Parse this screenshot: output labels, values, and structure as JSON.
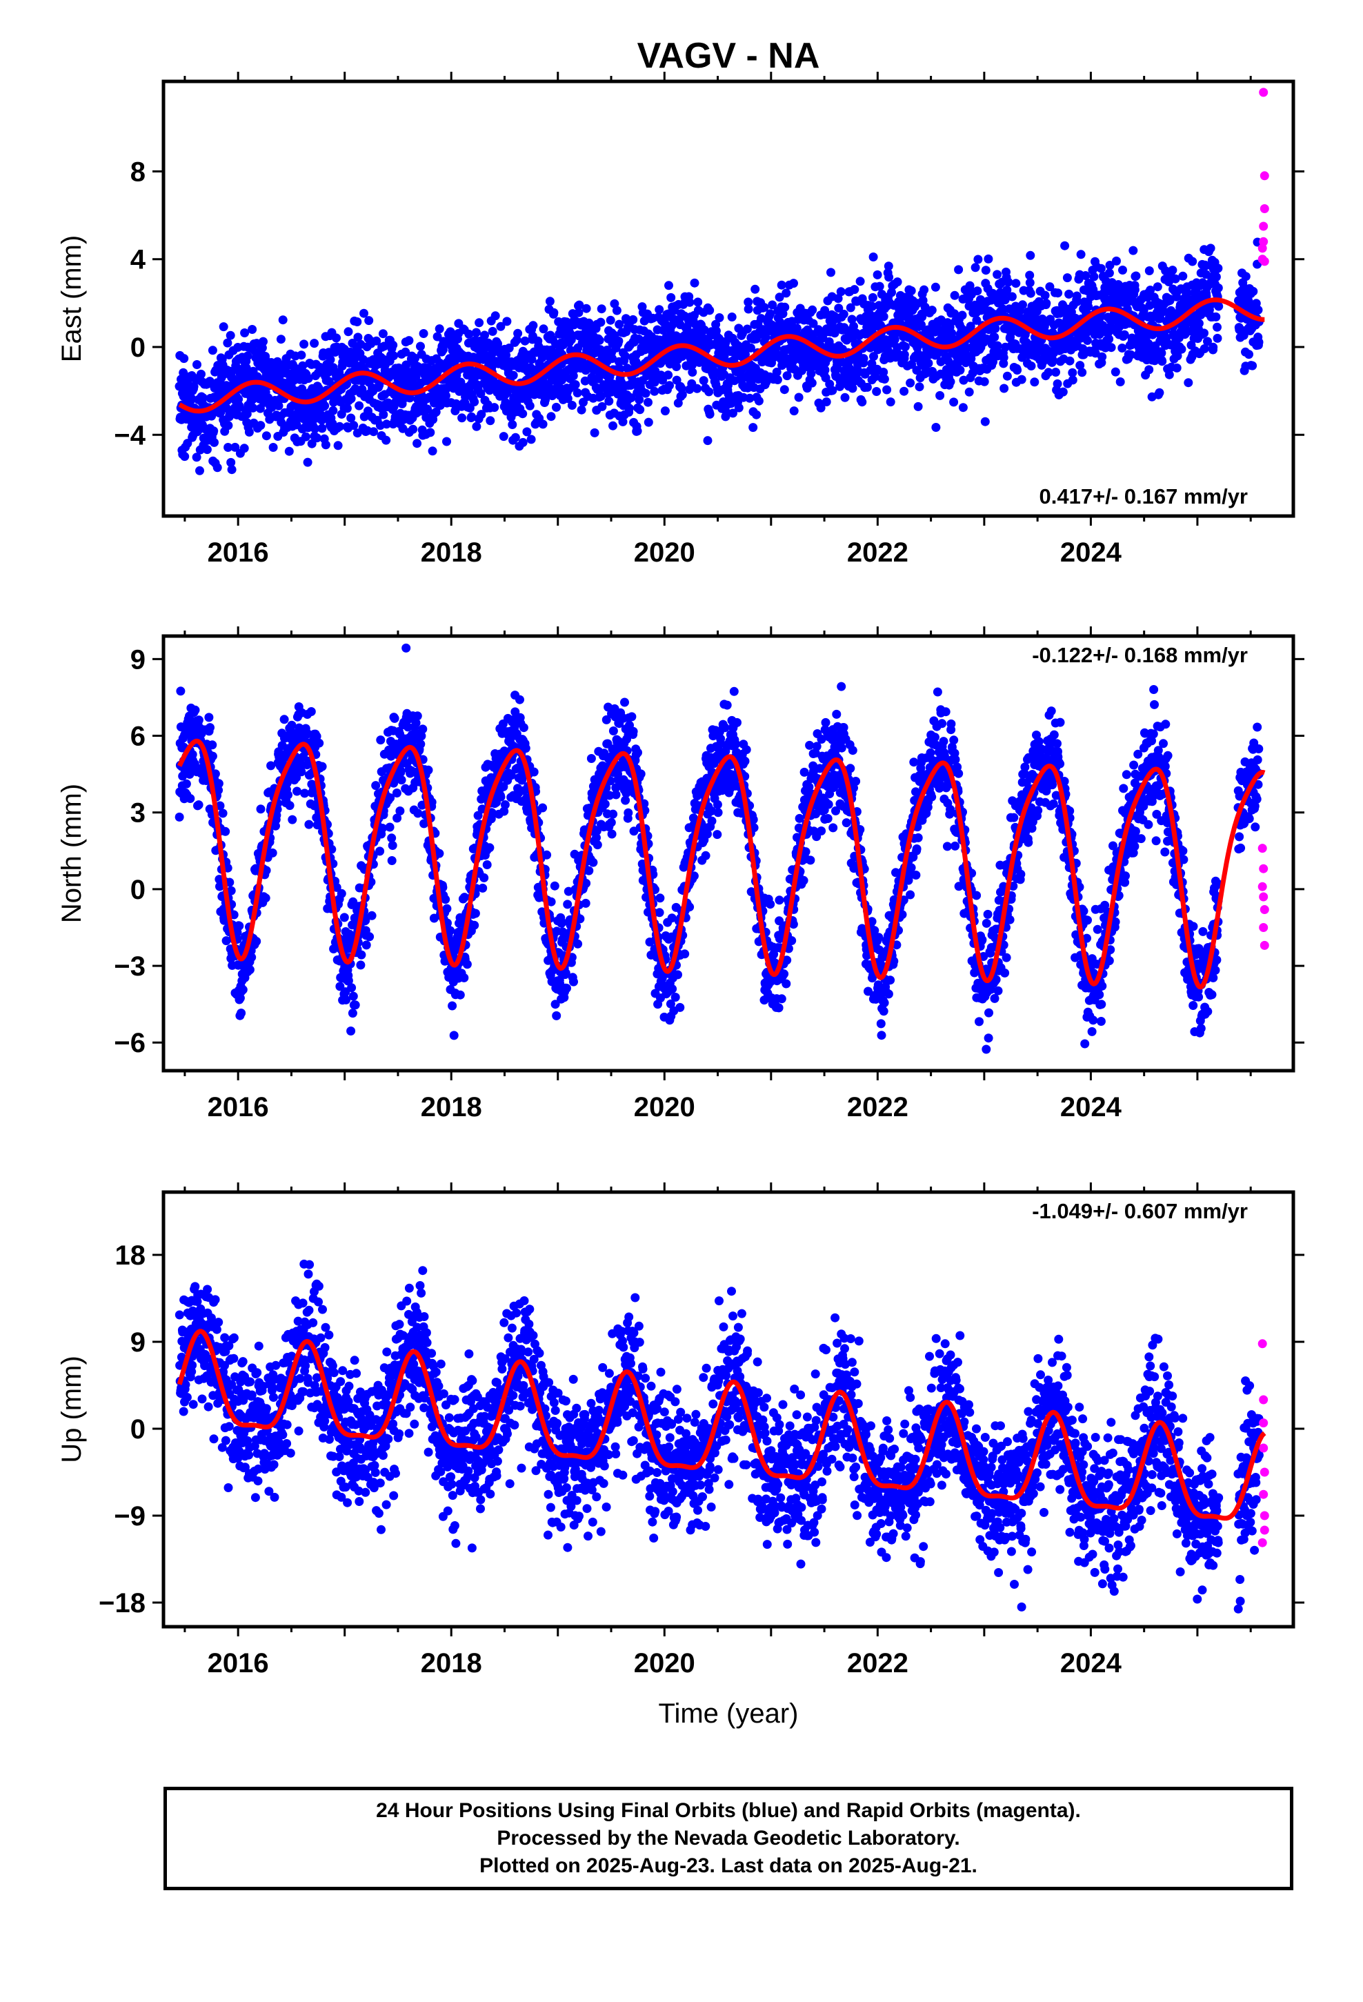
{
  "title": "VAGV - NA",
  "x_label": "Time (year)",
  "footer": {
    "line1": "24 Hour Positions Using Final Orbits (blue) and Rapid Orbits (magenta).",
    "line2": "Processed by the Nevada Geodetic Laboratory.",
    "line3": "Plotted on 2025-Aug-23. Last data on 2025-Aug-21."
  },
  "colors": {
    "final_orbits": "#0000ff",
    "rapid_orbits": "#ff00ff",
    "model_fit": "#ff0000",
    "frame": "#000000"
  },
  "chart_data": [
    {
      "type": "scatter",
      "component": "east",
      "ylabel": "East (mm)",
      "rate_text": "0.417+/- 0.167 mm/yr",
      "rate_position": "bottom-right",
      "xlim": [
        2015.3,
        2025.9
      ],
      "ylim": [
        -7.7,
        12.1
      ],
      "yticks": [
        -4,
        0,
        4,
        8
      ],
      "xticks": [
        2016,
        2018,
        2020,
        2022,
        2024
      ],
      "grid": false,
      "data_span": [
        2015.45,
        2025.63
      ],
      "gap": [
        2025.2,
        2025.38
      ],
      "fit": {
        "offset": -2.45,
        "rate": 0.417,
        "t0": 2015.45,
        "annual_amp": 0.55,
        "annual_peak": 2016.15,
        "semiannual_amp": 0.0,
        "semiannual_peak": 2016.0
      },
      "scatter_sigma": 1.2,
      "final_points_approx": 3400,
      "rapid_points": [
        [
          2025.61,
          4.0
        ],
        [
          2025.62,
          4.8
        ],
        [
          2025.62,
          5.5
        ],
        [
          2025.63,
          6.3
        ],
        [
          2025.63,
          7.8
        ],
        [
          2025.62,
          11.6
        ],
        [
          2025.61,
          4.5
        ],
        [
          2025.63,
          3.9
        ]
      ]
    },
    {
      "type": "scatter",
      "component": "north",
      "ylabel": "North (mm)",
      "rate_text": "-0.122+/- 0.168 mm/yr",
      "rate_position": "top-right",
      "xlim": [
        2015.3,
        2025.9
      ],
      "ylim": [
        -7.1,
        9.9
      ],
      "yticks": [
        -6,
        -3,
        0,
        3,
        6,
        9
      ],
      "xticks": [
        2016,
        2018,
        2020,
        2022,
        2024
      ],
      "grid": false,
      "data_span": [
        2015.45,
        2025.63
      ],
      "gap": [
        2025.2,
        2025.38
      ],
      "fit": {
        "offset": 2.15,
        "rate": -0.122,
        "t0": 2015.45,
        "annual_amp": 4.1,
        "annual_peak": 2015.55,
        "semiannual_amp": 0.8,
        "semiannual_peak": 2015.75
      },
      "scatter_sigma": 1.0,
      "final_points_approx": 3400,
      "rapid_points": [
        [
          2025.61,
          1.6
        ],
        [
          2025.62,
          0.8
        ],
        [
          2025.62,
          -0.3
        ],
        [
          2025.63,
          -0.8
        ],
        [
          2025.62,
          -1.5
        ],
        [
          2025.63,
          -2.2
        ],
        [
          2025.61,
          0.1
        ]
      ]
    },
    {
      "type": "scatter",
      "component": "up",
      "ylabel": "Up (mm)",
      "rate_text": "-1.049+/- 0.607 mm/yr",
      "rate_position": "top-right",
      "xlim": [
        2015.3,
        2025.9
      ],
      "ylim": [
        -20.5,
        24.5
      ],
      "yticks": [
        -18,
        -9,
        0,
        9,
        18
      ],
      "xticks": [
        2016,
        2018,
        2020,
        2022,
        2024
      ],
      "grid": false,
      "data_span": [
        2015.45,
        2025.63
      ],
      "gap": [
        2025.2,
        2025.38
      ],
      "fit": {
        "offset": 4.3,
        "rate": -1.049,
        "t0": 2015.45,
        "annual_amp": 4.6,
        "annual_peak": 2015.65,
        "semiannual_amp": 1.4,
        "semiannual_peak": 2015.65
      },
      "scatter_sigma": 3.6,
      "final_points_approx": 3400,
      "rapid_points": [
        [
          2025.61,
          8.8
        ],
        [
          2025.62,
          3.0
        ],
        [
          2025.62,
          -2.0
        ],
        [
          2025.63,
          -4.5
        ],
        [
          2025.62,
          -6.8
        ],
        [
          2025.63,
          -9.0
        ],
        [
          2025.61,
          -11.8
        ],
        [
          2025.62,
          0.6
        ],
        [
          2025.63,
          -10.5
        ]
      ]
    }
  ]
}
